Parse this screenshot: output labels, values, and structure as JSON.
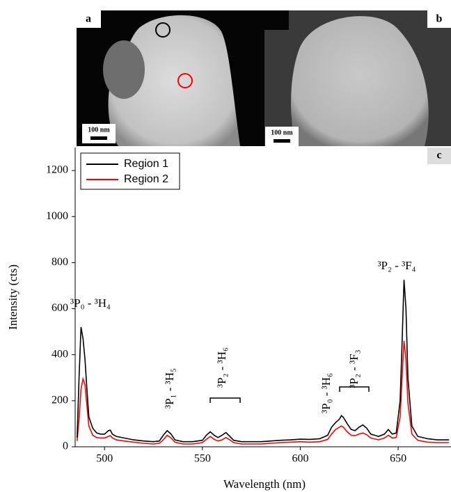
{
  "panels": {
    "a": {
      "label": "a",
      "scale_bar": "100 nm"
    },
    "b": {
      "label": "b",
      "scale_bar": "100 nm"
    }
  },
  "chart_data": {
    "type": "line",
    "label": "c",
    "xlabel": "Wavelength (nm)",
    "ylabel": "Intensity (cts)",
    "x": [
      486,
      487,
      488,
      489,
      490,
      491,
      492,
      494,
      496,
      498,
      500,
      502,
      503,
      504,
      506,
      510,
      515,
      520,
      525,
      528,
      530,
      532,
      534,
      536,
      540,
      545,
      550,
      552,
      554,
      556,
      558,
      560,
      562,
      564,
      566,
      570,
      575,
      580,
      585,
      590,
      595,
      600,
      605,
      610,
      614,
      616,
      618,
      620,
      621,
      622,
      624,
      626,
      628,
      630,
      632,
      634,
      636,
      640,
      643,
      645,
      647,
      649,
      651,
      652,
      653,
      654,
      655,
      657,
      660,
      665,
      670,
      676
    ],
    "series": [
      {
        "name": "Region 1",
        "color": "#000000",
        "values": [
          40,
          300,
          520,
          470,
          380,
          250,
          130,
          80,
          60,
          55,
          55,
          70,
          72,
          55,
          45,
          38,
          30,
          25,
          22,
          25,
          50,
          70,
          55,
          30,
          22,
          22,
          28,
          50,
          65,
          50,
          40,
          50,
          62,
          45,
          28,
          22,
          22,
          22,
          25,
          28,
          30,
          33,
          32,
          35,
          50,
          85,
          105,
          120,
          135,
          128,
          100,
          75,
          70,
          85,
          95,
          80,
          55,
          45,
          55,
          75,
          55,
          60,
          200,
          450,
          725,
          600,
          300,
          90,
          45,
          35,
          30,
          30
        ]
      },
      {
        "name": "Region 2",
        "color": "#ff0000",
        "values": [
          25,
          120,
          250,
          295,
          270,
          180,
          90,
          50,
          40,
          38,
          38,
          45,
          48,
          38,
          30,
          25,
          20,
          15,
          12,
          15,
          30,
          50,
          38,
          20,
          12,
          12,
          18,
          32,
          45,
          32,
          25,
          30,
          40,
          30,
          18,
          12,
          12,
          12,
          15,
          18,
          20,
          22,
          20,
          22,
          32,
          55,
          75,
          85,
          90,
          85,
          65,
          50,
          48,
          55,
          60,
          52,
          38,
          30,
          38,
          50,
          38,
          40,
          130,
          300,
          460,
          380,
          190,
          55,
          28,
          20,
          18,
          18
        ]
      }
    ],
    "xlim": [
      485,
      677
    ],
    "ylim": [
      0,
      1300
    ],
    "xticks": [
      500,
      550,
      600,
      650
    ],
    "yticks": [
      0,
      200,
      400,
      600,
      800,
      1000,
      1200
    ],
    "legend": "upper left",
    "annotations": [
      {
        "text": "³P₀ - ³H₄"
      },
      {
        "text": "³P₁ - ³H₅"
      },
      {
        "text": "³P₂ - ³H₆"
      },
      {
        "text": "³P₀ - ³H₆"
      },
      {
        "text": "³P₂ - ³F₃"
      },
      {
        "text": "³P₂ - ³F₄"
      }
    ]
  }
}
